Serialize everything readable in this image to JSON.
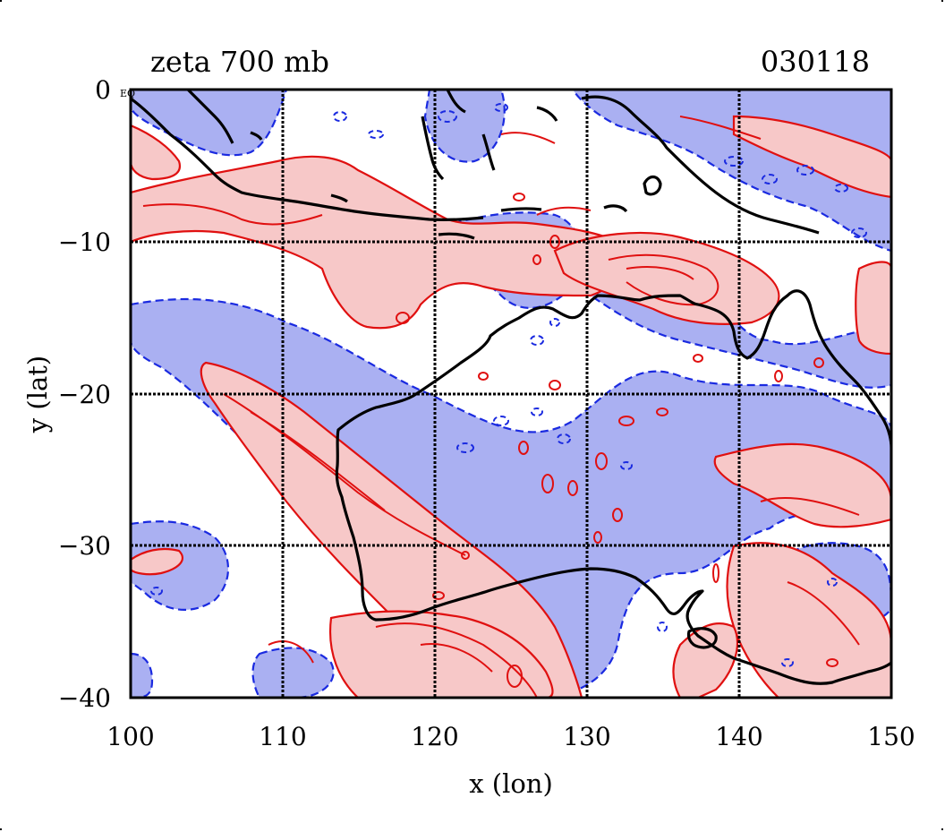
{
  "map": {
    "title": "zeta 700 mb",
    "date_label": "030118",
    "xlabel": "x (lon)",
    "ylabel": "y (lat)",
    "x_ticks": [
      "100",
      "110",
      "120",
      "130",
      "140",
      "150"
    ],
    "y_ticks": [
      "0",
      "−10",
      "−20",
      "−30",
      "−40"
    ],
    "corner_mark": "EQ",
    "extent": {
      "lon_min": 100,
      "lon_max": 150,
      "lat_min": -40,
      "lat_max": 0
    },
    "gridlines_lon": [
      110,
      120,
      130,
      140
    ],
    "gridlines_lat": [
      -10,
      -20,
      -30
    ],
    "colors": {
      "positive_fill": "#f7c8c8",
      "positive_contour": "#e01010",
      "negative_fill": "#aab0f2",
      "negative_contour": "#1a2ae0",
      "coastline": "#000000",
      "grid": "#000000"
    },
    "legend": "none"
  }
}
